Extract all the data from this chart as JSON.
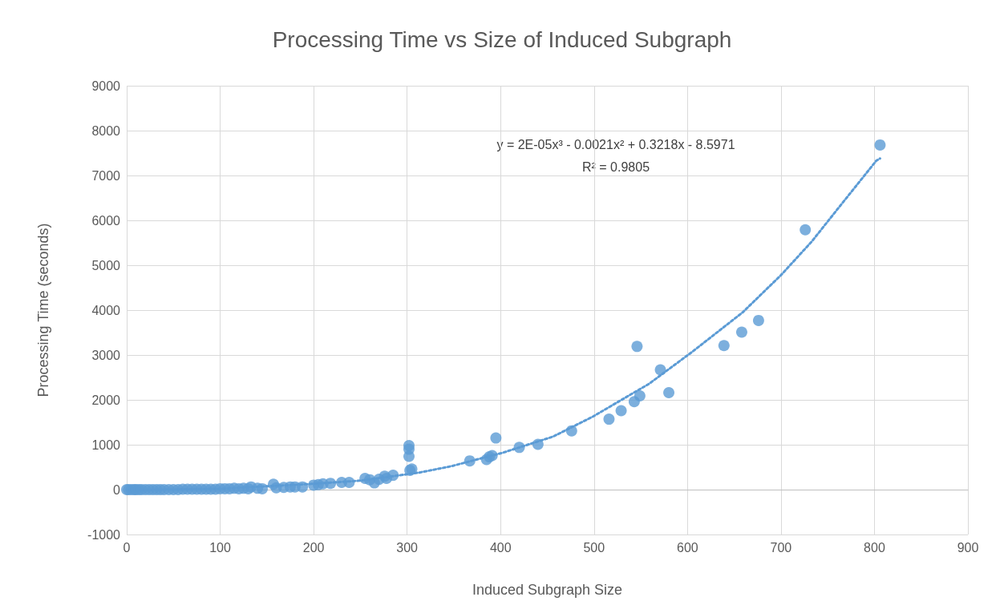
{
  "chart_data": {
    "type": "scatter",
    "title": "Processing Time vs Size of Induced Subgraph",
    "xlabel": "Induced Subgraph Size",
    "ylabel": "Processing Time (seconds)",
    "annotations": [
      "y = 2E-05x³ - 0.0021x² + 0.3218x - 8.5971",
      "R² = 0.9805"
    ],
    "xlim": [
      0,
      900
    ],
    "xticks": [
      0,
      100,
      200,
      300,
      400,
      500,
      600,
      700,
      800,
      900
    ],
    "ylim": [
      -1000,
      9000
    ],
    "yticks": [
      -1000,
      0,
      1000,
      2000,
      3000,
      4000,
      5000,
      6000,
      7000,
      8000,
      9000
    ],
    "grid": true,
    "series": [
      {
        "color": "#5b9bd5",
        "marker": "circle",
        "x": [
          0,
          2,
          5,
          8,
          10,
          13,
          16,
          20,
          24,
          28,
          32,
          36,
          40,
          45,
          50,
          55,
          60,
          65,
          70,
          75,
          80,
          85,
          90,
          95,
          100,
          105,
          110,
          115,
          120,
          125,
          130,
          133,
          140,
          145,
          157,
          160,
          168,
          175,
          180,
          188,
          200,
          205,
          210,
          218,
          230,
          238,
          255,
          260,
          265,
          270,
          276,
          278,
          285,
          302,
          302,
          302,
          303,
          305,
          367,
          385,
          388,
          391,
          395,
          420,
          440,
          476,
          516,
          529,
          543,
          546,
          549,
          571,
          580,
          639,
          658,
          676,
          726,
          806
        ],
        "values": [
          0,
          0,
          0,
          0,
          0,
          0,
          0,
          0,
          0,
          0,
          0,
          0,
          0,
          0,
          0,
          0,
          10,
          10,
          10,
          10,
          10,
          10,
          10,
          10,
          20,
          20,
          20,
          30,
          20,
          30,
          20,
          60,
          30,
          20,
          120,
          40,
          50,
          60,
          60,
          60,
          100,
          110,
          130,
          140,
          160,
          160,
          250,
          220,
          150,
          230,
          300,
          250,
          320,
          980,
          900,
          740,
          430,
          460,
          640,
          670,
          730,
          760,
          1150,
          940,
          1010,
          1310,
          1570,
          1760,
          1960,
          3190,
          2090,
          2670,
          2160,
          3210,
          3510,
          3770,
          5790,
          7680
        ]
      },
      {
        "type": "line",
        "color": "#5b9bd5",
        "marker": "none",
        "line_style": "dotted",
        "x": [
          0,
          100,
          200,
          250,
          313,
          347,
          402,
          456,
          499,
          559,
          605,
          659,
          700,
          733,
          762,
          802,
          806
        ],
        "values": [
          -10,
          20,
          130,
          200,
          380,
          520,
          820,
          1180,
          1630,
          2360,
          3070,
          3950,
          4780,
          5530,
          6290,
          7330,
          7380
        ]
      }
    ]
  }
}
